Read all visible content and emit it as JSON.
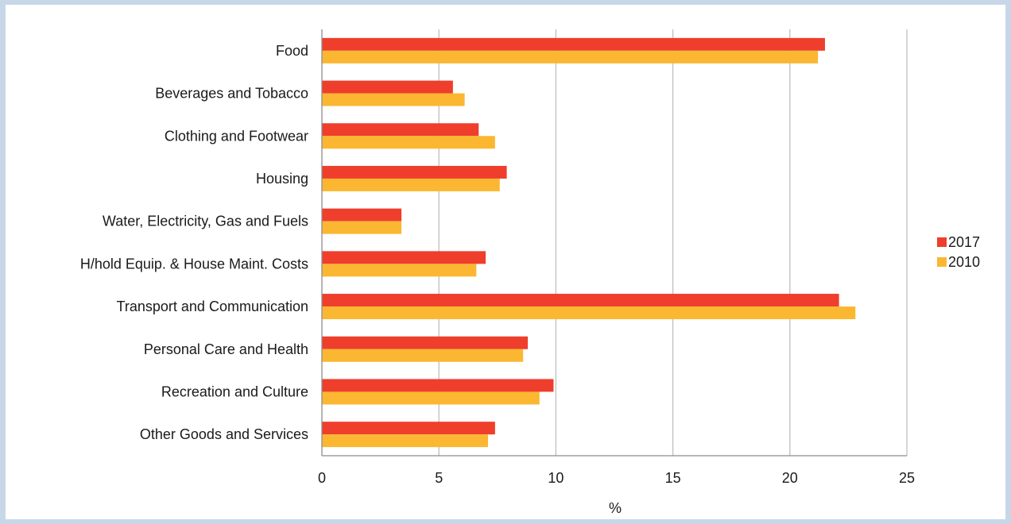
{
  "chart_data": {
    "type": "bar",
    "orientation": "horizontal",
    "title": "",
    "xlabel": "%",
    "ylabel": "",
    "xlim": [
      0,
      25
    ],
    "xticks": [
      0,
      5,
      10,
      15,
      20,
      25
    ],
    "grid": "vertical",
    "legend_position": "right",
    "categories": [
      "Food",
      "Beverages and Tobacco",
      "Clothing and Footwear",
      "Housing",
      "Water, Electricity, Gas and Fuels",
      "H/hold Equip. & House Maint. Costs",
      "Transport and Communication",
      "Personal Care and Health",
      "Recreation and Culture",
      "Other Goods and Services"
    ],
    "series": [
      {
        "name": "2017",
        "color": "#ef3e2c",
        "values": [
          21.5,
          5.6,
          6.7,
          7.9,
          3.4,
          7.0,
          22.1,
          8.8,
          9.9,
          7.4
        ]
      },
      {
        "name": "2010",
        "color": "#fbb731",
        "values": [
          21.2,
          6.1,
          7.4,
          7.6,
          3.4,
          6.6,
          22.8,
          8.6,
          9.3,
          7.1
        ]
      }
    ]
  }
}
